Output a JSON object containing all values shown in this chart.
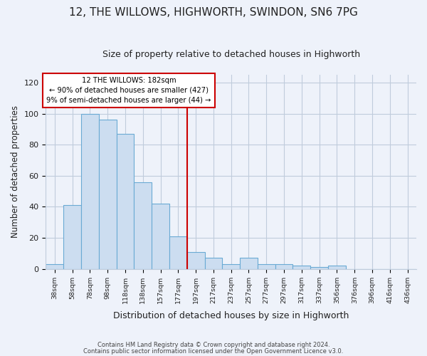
{
  "title": "12, THE WILLOWS, HIGHWORTH, SWINDON, SN6 7PG",
  "subtitle": "Size of property relative to detached houses in Highworth",
  "xlabel": "Distribution of detached houses by size in Highworth",
  "ylabel": "Number of detached properties",
  "bar_labels": [
    "38sqm",
    "58sqm",
    "78sqm",
    "98sqm",
    "118sqm",
    "138sqm",
    "157sqm",
    "177sqm",
    "197sqm",
    "217sqm",
    "237sqm",
    "257sqm",
    "277sqm",
    "297sqm",
    "317sqm",
    "337sqm",
    "356sqm",
    "376sqm",
    "396sqm",
    "416sqm",
    "436sqm"
  ],
  "bar_values": [
    3,
    41,
    100,
    96,
    87,
    56,
    42,
    21,
    11,
    7,
    3,
    7,
    3,
    3,
    2,
    1,
    2,
    0,
    0,
    0,
    0
  ],
  "bar_color": "#ccddf0",
  "bar_edge_color": "#6aaad4",
  "vline_color": "#cc0000",
  "annotation_title": "12 THE WILLOWS: 182sqm",
  "annotation_line1": "← 90% of detached houses are smaller (427)",
  "annotation_line2": "9% of semi-detached houses are larger (44) →",
  "annotation_box_edge_color": "#cc0000",
  "ylim": [
    0,
    125
  ],
  "yticks": [
    0,
    20,
    40,
    60,
    80,
    100,
    120
  ],
  "footer1": "Contains HM Land Registry data © Crown copyright and database right 2024.",
  "footer2": "Contains public sector information licensed under the Open Government Licence v3.0.",
  "bg_color": "#eef2fa",
  "plot_bg_color": "#eef2fa",
  "grid_color": "#c0ccdc"
}
